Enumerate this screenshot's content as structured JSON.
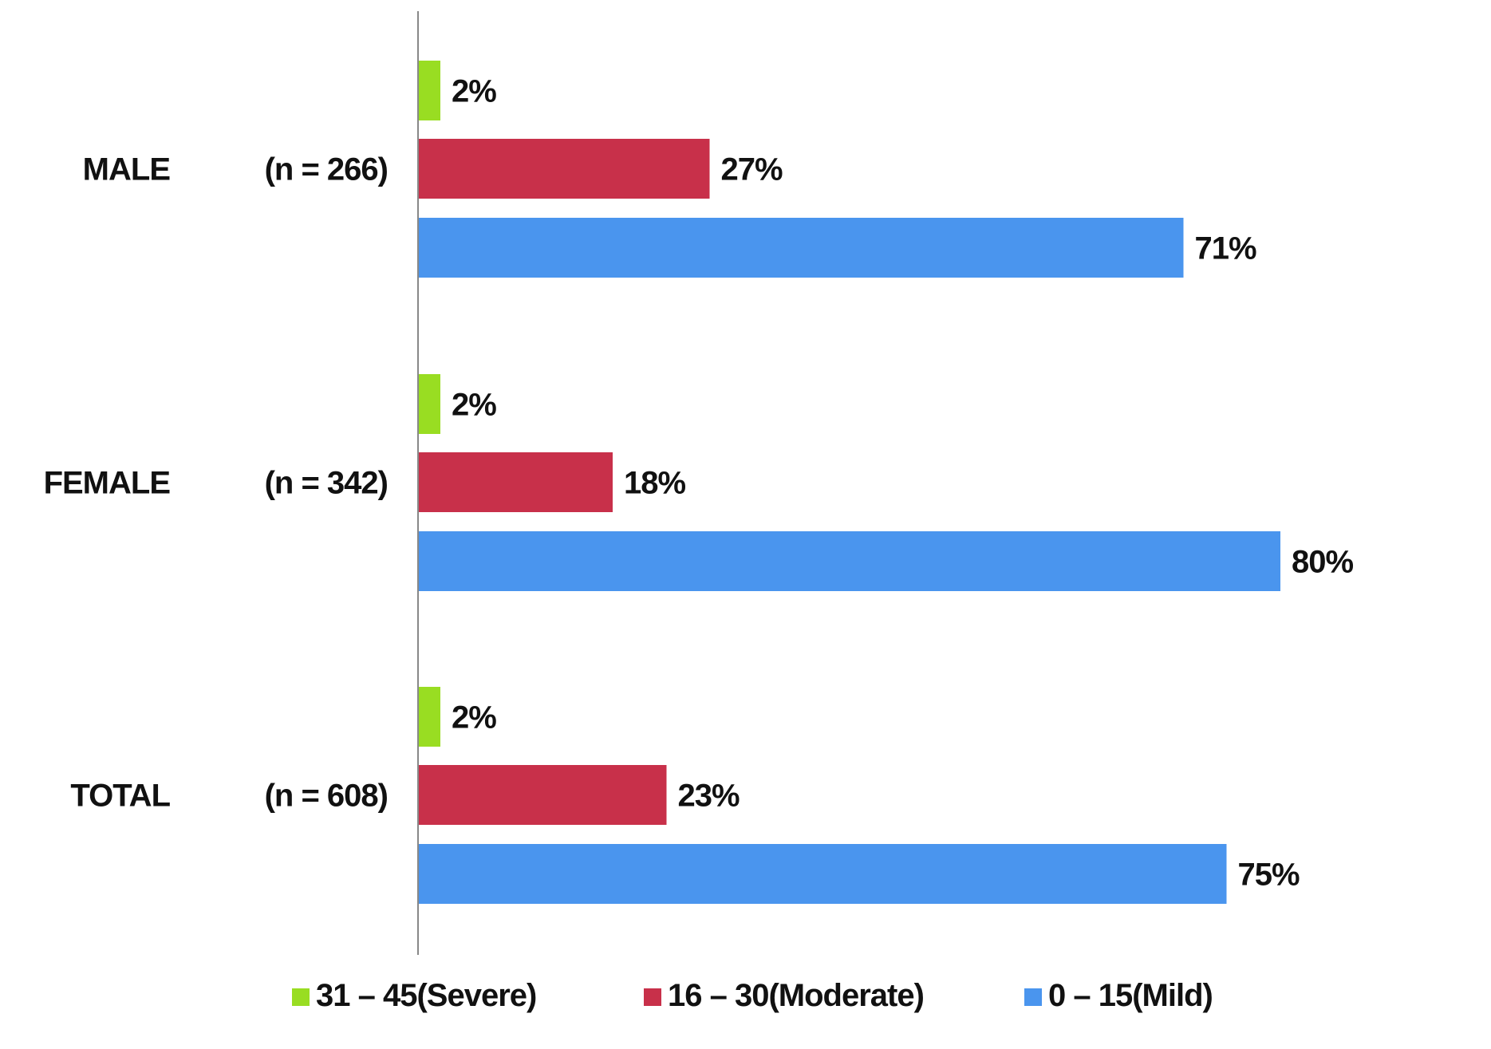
{
  "chart_data": {
    "type": "bar",
    "orientation": "horizontal",
    "categories": [
      "MALE",
      "FEMALE",
      "TOTAL"
    ],
    "category_counts": [
      "(n = 266)",
      "(n = 342)",
      "(n = 608)"
    ],
    "series": [
      {
        "name": "31 – 45(Severe)",
        "color": "#99dd22",
        "values": [
          2,
          2,
          2
        ]
      },
      {
        "name": "16 – 30(Moderate)",
        "color": "#c8304a",
        "values": [
          27,
          18,
          23
        ]
      },
      {
        "name": "0 – 15(Mild)",
        "color": "#4a95ee",
        "values": [
          71,
          80,
          75
        ]
      }
    ],
    "value_labels": [
      [
        "2%",
        "2%",
        "2%"
      ],
      [
        "27%",
        "18%",
        "23%"
      ],
      [
        "71%",
        "80%",
        "75%"
      ]
    ],
    "title": "",
    "xlabel": "",
    "ylabel": "",
    "xlim": [
      0,
      100
    ],
    "grid": false,
    "legend_position": "bottom"
  }
}
